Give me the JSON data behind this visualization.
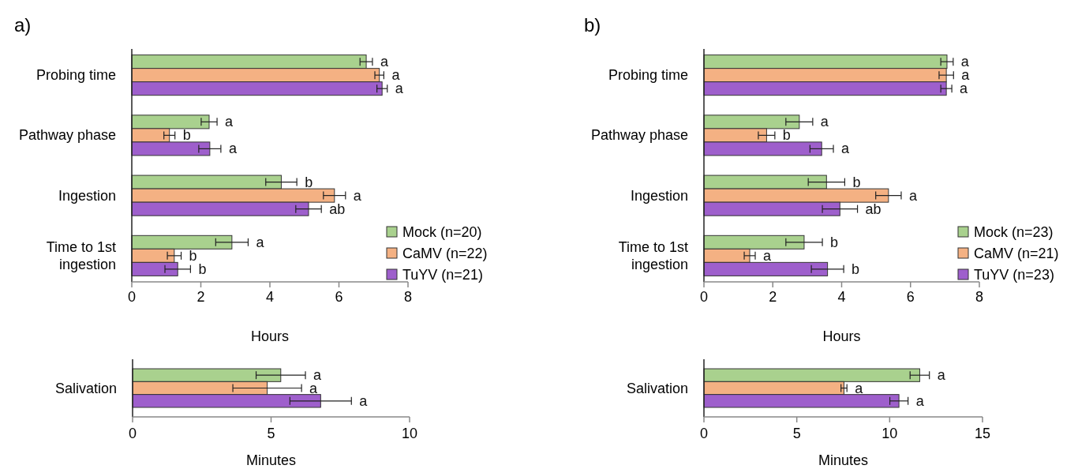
{
  "chart_data": [
    {
      "type": "bar",
      "orientation": "horizontal",
      "title": "a)",
      "xlabel": "Hours",
      "categories": [
        "Probing time",
        "Pathway phase",
        "Ingestion",
        "Time to 1st ingestion"
      ],
      "xlim": [
        0,
        8
      ],
      "xticks": [
        0,
        2,
        4,
        6,
        8
      ],
      "legend": "bottom right",
      "series": [
        {
          "name": "Mock (n=20)",
          "color": "#a9d18e",
          "values": [
            6.79,
            2.24,
            4.33,
            2.9
          ],
          "errors": [
            0.18,
            0.23,
            0.45,
            0.47
          ],
          "value_labels": [
            "a",
            "a",
            "b",
            "a"
          ]
        },
        {
          "name": "CaMV (n=22)",
          "color": "#f4b183",
          "values": [
            7.17,
            1.09,
            5.87,
            1.23
          ],
          "errors": [
            0.13,
            0.16,
            0.32,
            0.2
          ],
          "value_labels": [
            "a",
            "b",
            "a",
            "b"
          ]
        },
        {
          "name": "TuYV (n=21)",
          "color": "#9e5fcc",
          "values": [
            7.25,
            2.26,
            5.12,
            1.33
          ],
          "errors": [
            0.15,
            0.32,
            0.37,
            0.37
          ],
          "value_labels": [
            "a",
            "a",
            "ab",
            "b"
          ]
        }
      ]
    },
    {
      "type": "bar",
      "orientation": "horizontal",
      "xlabel": "Minutes",
      "categories": [
        "Salivation"
      ],
      "xlim": [
        0,
        10
      ],
      "xticks": [
        0,
        5,
        10
      ],
      "series": [
        {
          "color": "#a9d18e",
          "values": [
            5.35
          ],
          "errors": [
            0.89
          ],
          "value_labels": [
            "a"
          ]
        },
        {
          "color": "#f4b183",
          "values": [
            4.86
          ],
          "errors": [
            1.24
          ],
          "value_labels": [
            "a"
          ]
        },
        {
          "color": "#9e5fcc",
          "values": [
            6.79
          ],
          "errors": [
            1.11
          ],
          "value_labels": [
            "a"
          ]
        }
      ]
    },
    {
      "type": "bar",
      "orientation": "horizontal",
      "title": "b)",
      "xlabel": "Hours",
      "categories": [
        "Probing time",
        "Pathway phase",
        "Ingestion",
        "Time to 1st ingestion"
      ],
      "xlim": [
        0,
        8
      ],
      "xticks": [
        0,
        2,
        4,
        6,
        8
      ],
      "legend": "bottom right",
      "series": [
        {
          "name": "Mock (n=23)",
          "color": "#a9d18e",
          "values": [
            7.06,
            2.77,
            3.56,
            2.91
          ],
          "errors": [
            0.18,
            0.39,
            0.53,
            0.53
          ],
          "value_labels": [
            "a",
            "a",
            "b",
            "b"
          ]
        },
        {
          "name": "CaMV (n=21)",
          "color": "#f4b183",
          "values": [
            7.04,
            1.82,
            5.36,
            1.33
          ],
          "errors": [
            0.21,
            0.24,
            0.37,
            0.16
          ],
          "value_labels": [
            "a",
            "b",
            "a",
            "a"
          ]
        },
        {
          "name": "TuYV (n=23)",
          "color": "#9e5fcc",
          "values": [
            7.04,
            3.42,
            3.95,
            3.59
          ],
          "errors": [
            0.16,
            0.34,
            0.51,
            0.47
          ],
          "value_labels": [
            "a",
            "a",
            "ab",
            "b"
          ]
        }
      ]
    },
    {
      "type": "bar",
      "orientation": "horizontal",
      "xlabel": "Minutes",
      "categories": [
        "Salivation"
      ],
      "xlim": [
        0,
        15
      ],
      "xticks": [
        0,
        5,
        10,
        15
      ],
      "series": [
        {
          "color": "#a9d18e",
          "values": [
            11.62
          ],
          "errors": [
            0.52
          ],
          "value_labels": [
            "a"
          ]
        },
        {
          "color": "#f4b183",
          "values": [
            7.54
          ],
          "errors": [
            0.16
          ],
          "value_labels": [
            "a"
          ]
        },
        {
          "color": "#9e5fcc",
          "values": [
            10.5
          ],
          "errors": [
            0.49
          ],
          "value_labels": [
            "a"
          ]
        }
      ]
    }
  ]
}
